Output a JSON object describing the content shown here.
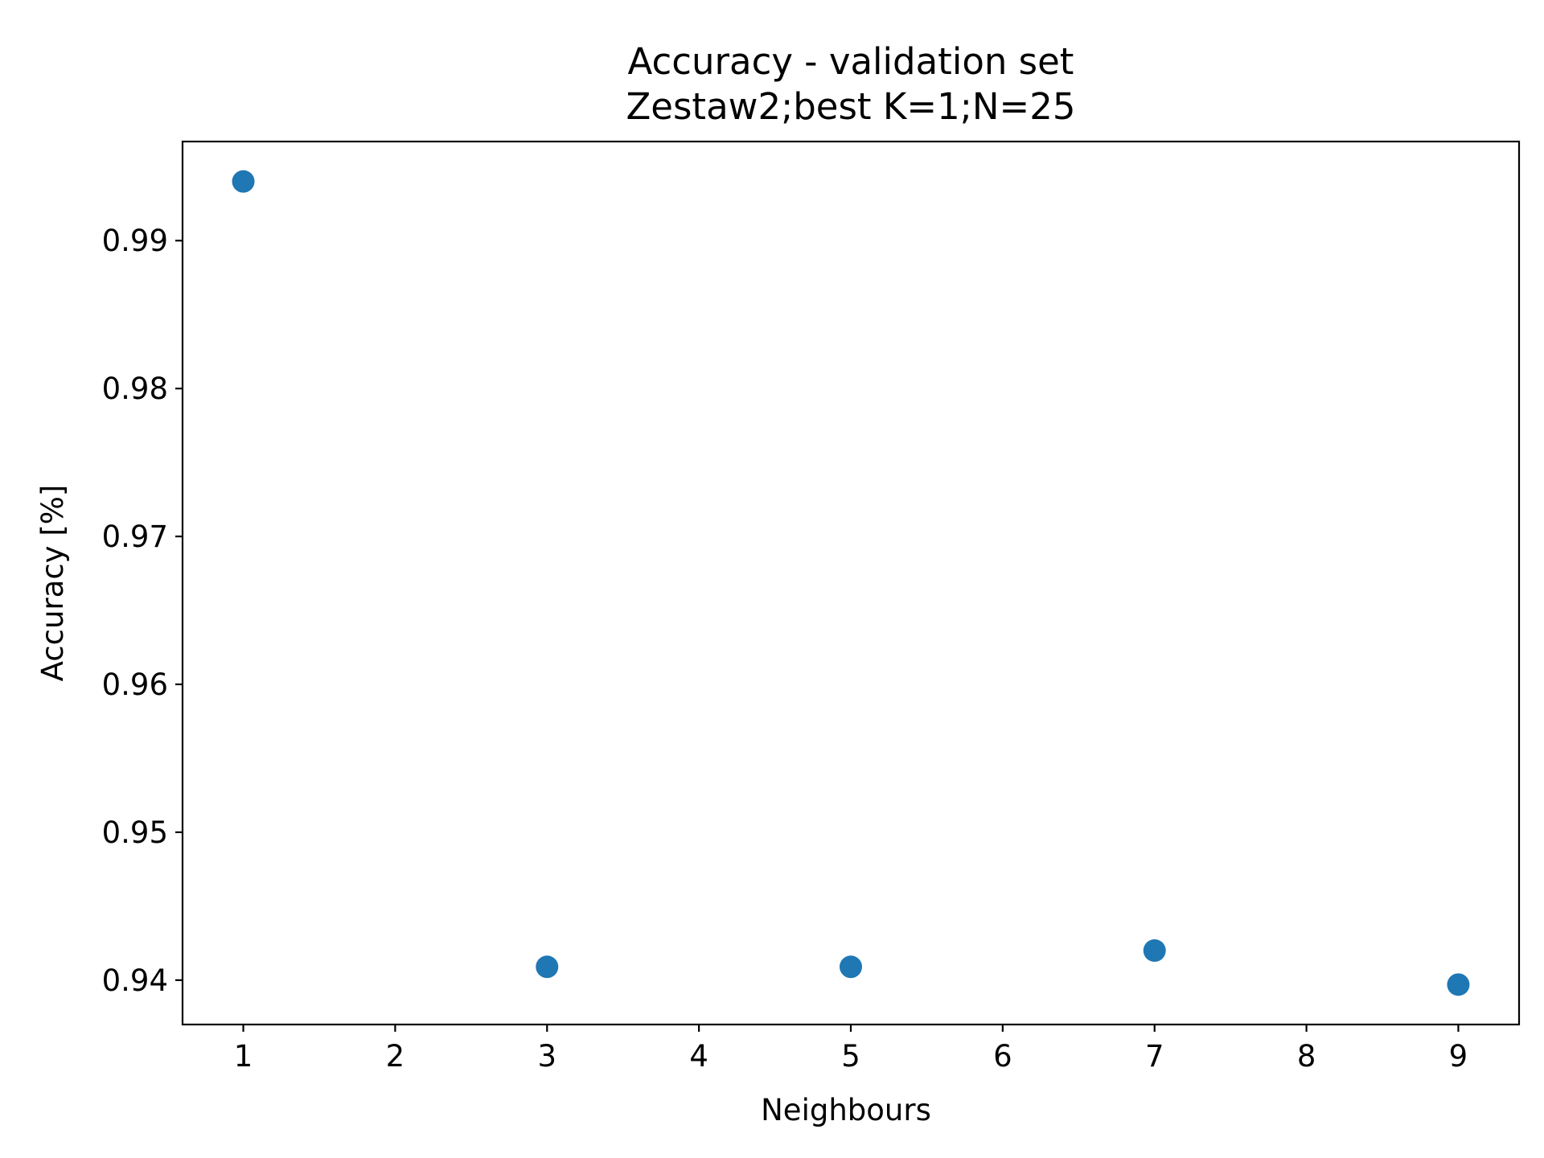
{
  "chart_data": {
    "type": "scatter",
    "title": "Accuracy - validation set",
    "subtitle": "Zestaw2;best K=1;N=25",
    "xlabel": "Neighbours",
    "ylabel": "Accuracy [%]",
    "xlim": [
      0.6,
      9.4
    ],
    "ylim": [
      0.937,
      0.9967
    ],
    "x_ticks": [
      "1",
      "2",
      "3",
      "4",
      "5",
      "6",
      "7",
      "8",
      "9"
    ],
    "y_ticks": [
      "0.94",
      "0.95",
      "0.96",
      "0.97",
      "0.98",
      "0.99"
    ],
    "grid": false,
    "color": "#1f77b4",
    "points": [
      {
        "x": 1,
        "y": 0.994
      },
      {
        "x": 3,
        "y": 0.9409
      },
      {
        "x": 5,
        "y": 0.9409
      },
      {
        "x": 7,
        "y": 0.942
      },
      {
        "x": 9,
        "y": 0.9397
      }
    ]
  }
}
